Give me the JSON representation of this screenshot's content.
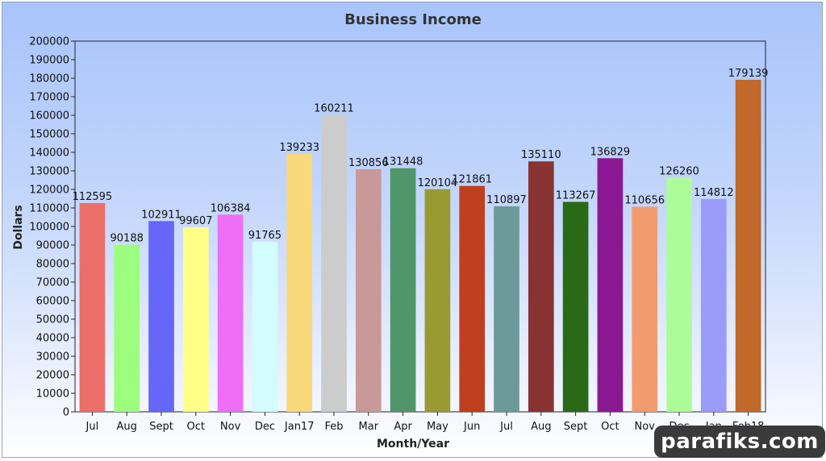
{
  "chart_data": {
    "type": "bar",
    "title": "Business Income",
    "xlabel": "Month/Year",
    "ylabel": "Dollars",
    "ylim": [
      0,
      200000
    ],
    "ytick_step": 10000,
    "grid": false,
    "legend": "none",
    "categories": [
      "Jul",
      "Aug",
      "Sept",
      "Oct",
      "Nov",
      "Dec",
      "Jan17",
      "Feb",
      "Mar",
      "Apr",
      "May",
      "Jun",
      "Jul",
      "Aug",
      "Sept",
      "Oct",
      "Nov",
      "Dec",
      "Jan",
      "Feb18"
    ],
    "values": [
      112595,
      90188,
      102911,
      99607,
      106384,
      91765,
      139233,
      160211,
      130856,
      131448,
      120104,
      121861,
      110897,
      135110,
      113267,
      136829,
      110656,
      126260,
      114812,
      179139
    ],
    "colors": [
      "#ec6e68",
      "#9cfd7e",
      "#6666f8",
      "#ffff88",
      "#ee6ef5",
      "#d2fcfd",
      "#f8d97a",
      "#cccccc",
      "#c99898",
      "#4f966b",
      "#999a32",
      "#bf3f1e",
      "#6c9a9a",
      "#893232",
      "#2a6a16",
      "#8a1893",
      "#f19b6e",
      "#adfc9a",
      "#9b9bfa",
      "#c0692a"
    ]
  },
  "watermark": "parafiks.com"
}
